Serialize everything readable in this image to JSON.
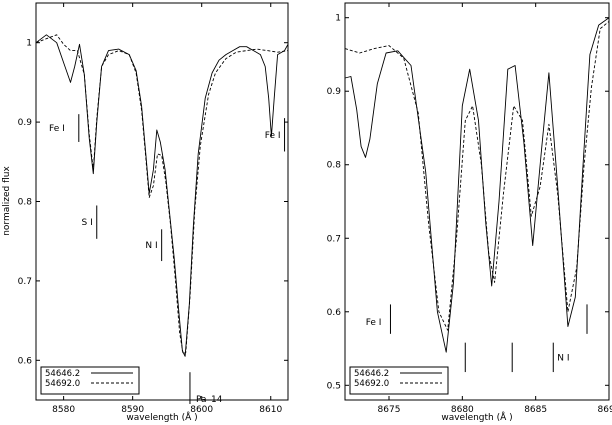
{
  "chart_data": [
    {
      "type": "line",
      "panel": "left",
      "xlabel": "wavelength (Å )",
      "ylabel": "normalized flux",
      "xlim": [
        8576,
        8612.5
      ],
      "ylim": [
        0.55,
        1.05
      ],
      "x_ticks": [
        8580,
        8590,
        8600,
        8610
      ],
      "x_tick_labels": [
        "8580",
        "8590",
        "8600",
        "8610"
      ],
      "y_ticks": [
        0.6,
        0.7,
        0.8,
        0.9,
        1.0
      ],
      "y_tick_labels": [
        "0.6",
        "0.7",
        "0.8",
        "0.9",
        "1"
      ],
      "grid": false,
      "legend_position": "bottom-left",
      "series": [
        {
          "name": "54646.2",
          "style": "solid",
          "x": [
            8576,
            8577.5,
            8579,
            8580,
            8581,
            8581.6,
            8582.3,
            8583,
            8583.7,
            8584.3,
            8584.8,
            8585.5,
            8586.5,
            8588,
            8589.5,
            8590.5,
            8591.3,
            8591.9,
            8592.4,
            8593,
            8593.5,
            8594,
            8594.7,
            8595.3,
            8596,
            8596.7,
            8597.2,
            8597.6,
            8598.2,
            8598.8,
            8599.5,
            8600.5,
            8601.5,
            8602.5,
            8603.5,
            8604.5,
            8605.5,
            8606.5,
            8607.5,
            8608.5,
            8609.2,
            8609.7,
            8610.1,
            8610.5,
            8611,
            8612,
            8612.5
          ],
          "y": [
            1.0,
            1.01,
            1.0,
            0.975,
            0.95,
            0.97,
            0.998,
            0.96,
            0.88,
            0.835,
            0.9,
            0.97,
            0.99,
            0.992,
            0.985,
            0.965,
            0.92,
            0.86,
            0.81,
            0.84,
            0.89,
            0.875,
            0.84,
            0.79,
            0.73,
            0.66,
            0.612,
            0.605,
            0.67,
            0.77,
            0.86,
            0.93,
            0.962,
            0.978,
            0.985,
            0.99,
            0.995,
            0.995,
            0.99,
            0.985,
            0.97,
            0.93,
            0.882,
            0.93,
            0.985,
            0.99,
            0.998
          ]
        },
        {
          "name": "54692.0",
          "style": "dashed",
          "x": [
            8576,
            8577.5,
            8579,
            8580,
            8581,
            8582,
            8583,
            8583.7,
            8584.3,
            8584.8,
            8585.5,
            8586.5,
            8588,
            8589.5,
            8590.5,
            8591.3,
            8591.9,
            8592.4,
            8593,
            8593.6,
            8594.2,
            8594.8,
            8595.5,
            8596.2,
            8596.8,
            8597.3,
            8597.7,
            8598.3,
            8599,
            8599.8,
            8601,
            8602,
            8603.5,
            8605,
            8606.5,
            8608,
            8609.5,
            8611,
            8612.5
          ],
          "y": [
            1.0,
            1.005,
            1.01,
            0.998,
            0.99,
            0.99,
            0.96,
            0.885,
            0.84,
            0.905,
            0.97,
            0.985,
            0.99,
            0.985,
            0.962,
            0.915,
            0.855,
            0.805,
            0.82,
            0.86,
            0.858,
            0.825,
            0.77,
            0.7,
            0.635,
            0.608,
            0.61,
            0.68,
            0.79,
            0.87,
            0.935,
            0.962,
            0.98,
            0.988,
            0.99,
            0.992,
            0.99,
            0.988,
            0.99
          ]
        }
      ],
      "annotations": [
        {
          "label": "Fe I",
          "line_x": 8582.2,
          "line_y": [
            0.875,
            0.91
          ]
        },
        {
          "label": "S I",
          "line_x": 8584.8,
          "line_y": [
            0.753,
            0.795
          ]
        },
        {
          "label": "N I",
          "line_x": 8594.2,
          "line_y": [
            0.725,
            0.765
          ]
        },
        {
          "label": "Fe I",
          "line_x": 8612,
          "line_y": [
            0.863,
            0.905
          ]
        },
        {
          "label": "Pa–14",
          "line_x": 8598.3,
          "line_y": [
            0.545,
            0.585
          ]
        }
      ]
    },
    {
      "type": "line",
      "panel": "right",
      "xlabel": "wavelength (Å )",
      "ylabel": "",
      "xlim": [
        8672,
        8690
      ],
      "ylim": [
        0.48,
        1.02
      ],
      "x_ticks": [
        8675,
        8680,
        8685,
        8690
      ],
      "x_tick_labels": [
        "8675",
        "8680",
        "8685",
        "8690"
      ],
      "y_ticks": [
        0.5,
        0.6,
        0.7,
        0.8,
        0.9,
        1.0
      ],
      "y_tick_labels": [
        "0.5",
        "0.6",
        "0.7",
        "0.8",
        "0.9",
        "1"
      ],
      "grid": false,
      "legend_position": "bottom-left",
      "series": [
        {
          "name": "54646.2",
          "style": "solid",
          "x": [
            8672,
            8672.4,
            8672.8,
            8673.1,
            8673.4,
            8673.7,
            8674.2,
            8674.8,
            8675.6,
            8676.5,
            8677.5,
            8678.3,
            8678.9,
            8679.4,
            8680,
            8680.5,
            8681.1,
            8681.6,
            8682,
            8682.5,
            8683.1,
            8683.6,
            8684.2,
            8684.8,
            8685.4,
            8685.9,
            8686.5,
            8687.2,
            8687.7,
            8688.2,
            8688.7,
            8689.3,
            8690
          ],
          "y": [
            0.918,
            0.92,
            0.875,
            0.825,
            0.81,
            0.835,
            0.91,
            0.952,
            0.955,
            0.935,
            0.79,
            0.6,
            0.545,
            0.64,
            0.88,
            0.93,
            0.86,
            0.72,
            0.635,
            0.75,
            0.93,
            0.935,
            0.83,
            0.69,
            0.82,
            0.925,
            0.77,
            0.58,
            0.62,
            0.79,
            0.95,
            0.99,
            1.0
          ]
        },
        {
          "name": "54692.0",
          "style": "dashed",
          "x": [
            8672,
            8673,
            8674,
            8675,
            8676,
            8677,
            8677.7,
            8678.4,
            8679,
            8679.6,
            8680.2,
            8680.7,
            8681.3,
            8681.8,
            8682.2,
            8682.8,
            8683.5,
            8684.1,
            8684.7,
            8685.3,
            8685.9,
            8686.5,
            8687.2,
            8687.8,
            8688.3,
            8688.8,
            8689.4,
            8690
          ],
          "y": [
            0.958,
            0.952,
            0.958,
            0.962,
            0.945,
            0.87,
            0.72,
            0.6,
            0.575,
            0.7,
            0.86,
            0.88,
            0.8,
            0.68,
            0.64,
            0.76,
            0.88,
            0.86,
            0.73,
            0.77,
            0.855,
            0.76,
            0.6,
            0.66,
            0.8,
            0.905,
            0.985,
            0.995
          ]
        }
      ],
      "annotations": [
        {
          "label": "Fe I",
          "line_x": 8675.1,
          "line_y": [
            0.57,
            0.61
          ]
        },
        {
          "label": "",
          "line_x": 8680.2,
          "line_y": [
            0.518,
            0.558
          ]
        },
        {
          "label": "",
          "line_x": 8683.4,
          "line_y": [
            0.518,
            0.558
          ]
        },
        {
          "label": "N I",
          "line_x": 8686.2,
          "line_y": [
            0.518,
            0.558
          ]
        },
        {
          "label": "",
          "line_x": 8688.5,
          "line_y": [
            0.57,
            0.61
          ]
        }
      ]
    }
  ]
}
